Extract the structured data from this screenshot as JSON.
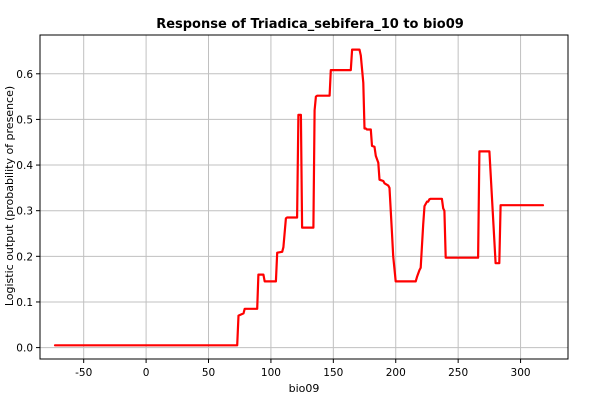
{
  "chart_data": {
    "type": "line",
    "title": "Response of Triadica_sebifera_10 to bio09",
    "xlabel": "bio09",
    "ylabel": "Logistic output (probability of presence)",
    "xlim": [
      -85,
      338
    ],
    "ylim": [
      -0.025,
      0.685
    ],
    "xticks": [
      -50,
      0,
      50,
      100,
      150,
      200,
      250,
      300
    ],
    "yticks": [
      0.0,
      0.1,
      0.2,
      0.3,
      0.4,
      0.5,
      0.6
    ],
    "grid": true,
    "legend": "none",
    "series": [
      {
        "color": "#ff0000",
        "x": [
          -73,
          73,
          74,
          78,
          79,
          89,
          90,
          94,
          95,
          104,
          105,
          109,
          110,
          112,
          113,
          121,
          122,
          124,
          125,
          134,
          135,
          136,
          137,
          147,
          148,
          164,
          165,
          171,
          172,
          174,
          175,
          176,
          177,
          180,
          181,
          183,
          184,
          186,
          187,
          190,
          191,
          194,
          195,
          197,
          198,
          200,
          201,
          216,
          217,
          219,
          220,
          222,
          223,
          225,
          226,
          227,
          228,
          229,
          230,
          237,
          238,
          239,
          240,
          266,
          267,
          274,
          275,
          280,
          281,
          283,
          284,
          318
        ],
        "y": [
          0.005,
          0.005,
          0.07,
          0.075,
          0.085,
          0.085,
          0.16,
          0.16,
          0.145,
          0.145,
          0.208,
          0.21,
          0.22,
          0.283,
          0.285,
          0.285,
          0.51,
          0.51,
          0.263,
          0.263,
          0.52,
          0.55,
          0.552,
          0.552,
          0.608,
          0.608,
          0.653,
          0.653,
          0.64,
          0.58,
          0.48,
          0.48,
          0.478,
          0.478,
          0.442,
          0.44,
          0.42,
          0.405,
          0.368,
          0.365,
          0.36,
          0.355,
          0.35,
          0.25,
          0.2,
          0.145,
          0.145,
          0.145,
          0.155,
          0.17,
          0.175,
          0.27,
          0.31,
          0.32,
          0.32,
          0.325,
          0.326,
          0.326,
          0.326,
          0.326,
          0.305,
          0.3,
          0.197,
          0.197,
          0.43,
          0.43,
          0.43,
          0.185,
          0.185,
          0.185,
          0.312,
          0.312
        ]
      }
    ]
  }
}
